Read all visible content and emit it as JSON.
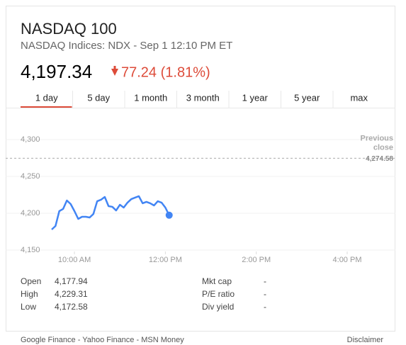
{
  "header": {
    "title": "NASDAQ 100",
    "subtitle": "NASDAQ Indices: NDX - Sep 1 12:10 PM ET",
    "price": "4,197.34",
    "change": "77.24 (1.81%)"
  },
  "tabs": [
    "1 day",
    "5 day",
    "1 month",
    "3 month",
    "1 year",
    "5 year",
    "max"
  ],
  "chart_data": {
    "type": "line",
    "x": [
      570,
      575,
      580,
      585,
      590,
      595,
      600,
      605,
      610,
      615,
      620,
      625,
      630,
      635,
      640,
      645,
      650,
      655,
      660,
      665,
      670,
      675,
      680,
      685,
      690,
      695,
      700,
      705,
      710,
      715,
      720,
      725
    ],
    "series": [
      {
        "name": "NASDAQ 100",
        "color": "#4285f4",
        "values": [
          4177.9,
          4182.7,
          4202.9,
          4205.8,
          4217.3,
          4212.5,
          4202.9,
          4192.3,
          4195.2,
          4195.2,
          4194.2,
          4199.0,
          4216.3,
          4218.3,
          4222.1,
          4209.6,
          4208.7,
          4203.8,
          4211.5,
          4207.7,
          4214.4,
          4219.2,
          4221.2,
          4223.1,
          4213.5,
          4215.4,
          4213.5,
          4210.6,
          4216.3,
          4214.4,
          4207.7,
          4197.3
        ]
      }
    ],
    "xlim": [
      570,
      960
    ],
    "xticks": [
      {
        "value": 600,
        "label": "10:00 AM"
      },
      {
        "value": 720,
        "label": "12:00 PM"
      },
      {
        "value": 840,
        "label": "2:00 PM"
      },
      {
        "value": 960,
        "label": "4:00 PM"
      }
    ],
    "ylim": [
      4150,
      4300
    ],
    "yticks": [
      {
        "value": 4150,
        "label": "4,150"
      },
      {
        "value": 4200,
        "label": "4,200"
      },
      {
        "value": 4250,
        "label": "4,250"
      },
      {
        "value": 4300,
        "label": "4,300"
      }
    ],
    "grid": true,
    "reference": {
      "label": "Previous close",
      "value": 4274.58,
      "value_label": "4,274.58"
    }
  },
  "stats": {
    "left": [
      [
        "Open",
        "4,177.94"
      ],
      [
        "High",
        "4,229.31"
      ],
      [
        "Low",
        "4,172.58"
      ]
    ],
    "right": [
      [
        "Mkt cap",
        "-"
      ],
      [
        "P/E ratio",
        "-"
      ],
      [
        "Div yield",
        "-"
      ]
    ]
  },
  "footer": {
    "sources": "Google Finance - Yahoo Finance - MSN Money",
    "disclaimer": "Disclaimer"
  }
}
